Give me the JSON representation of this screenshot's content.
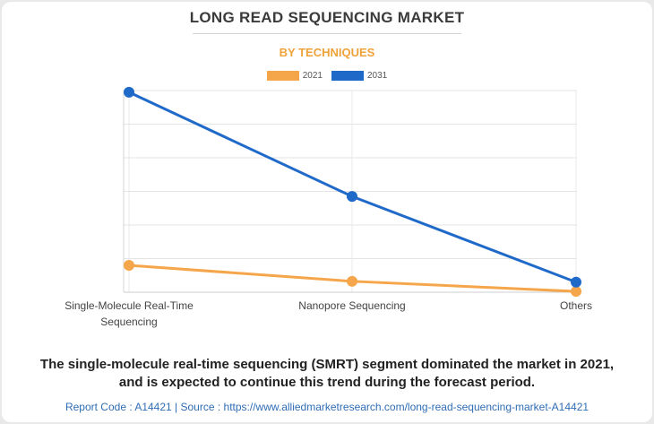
{
  "header": {
    "title": "LONG READ SEQUENCING MARKET",
    "subtitle": "BY TECHNIQUES"
  },
  "chart_data": {
    "type": "line",
    "title": "LONG READ SEQUENCING MARKET",
    "subtitle": "BY TECHNIQUES",
    "categories": [
      "Single-Molecule Real-Time Sequencing",
      "Nanopore Sequencing",
      "Others"
    ],
    "category_label_lines": [
      [
        "Single-Molecule Real-Time",
        "Sequencing"
      ],
      [
        "Nanopore Sequencing"
      ],
      [
        "Others"
      ]
    ],
    "series": [
      {
        "name": "2021",
        "color": "#f5a64a",
        "values": [
          16,
          6.5,
          0.5
        ]
      },
      {
        "name": "2031",
        "color": "#1f69c9",
        "values": [
          119,
          57,
          6
        ]
      }
    ],
    "ylim": [
      0,
      120
    ],
    "y_gridlines": 6,
    "xlabel": "",
    "ylabel": "",
    "grid": true,
    "legend": "top-center",
    "y_tick_labels_shown": false
  },
  "footer": {
    "caption_line1": "The single-molecule real-time sequencing (SMRT) segment dominated the market in 2021,",
    "caption_line2": "and is expected to continue this trend during the forecast period.",
    "source": "Report Code : A14421  |  Source : https://www.alliedmarketresearch.com/long-read-sequencing-market-A14421"
  }
}
